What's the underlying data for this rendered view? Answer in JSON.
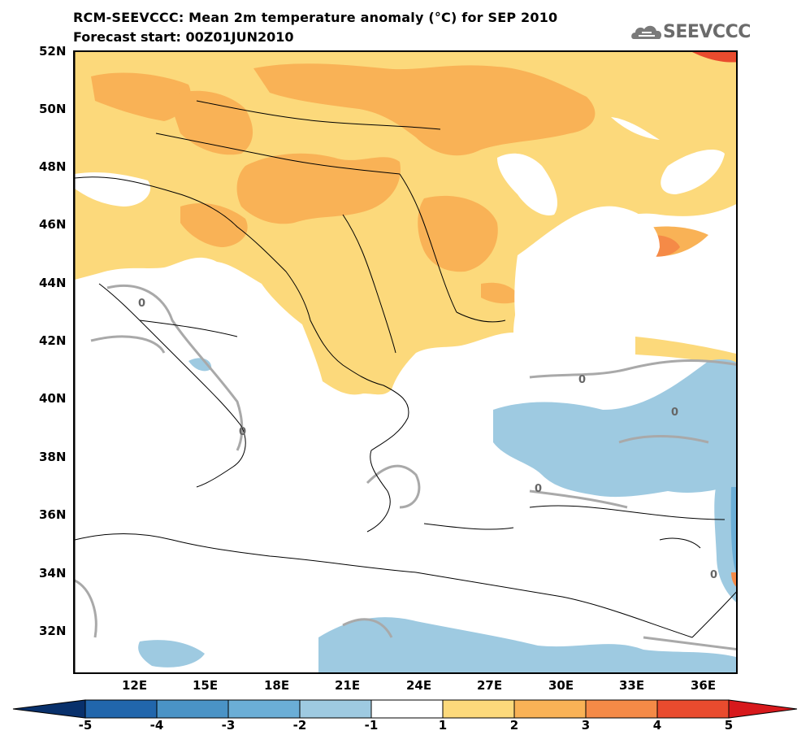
{
  "header": {
    "title": "RCM-SEEVCCC: Mean 2m temperature anomaly (°C) for SEP 2010",
    "subtitle": "Forecast start: 00Z01JUN2010",
    "logo_text": "SEEVCCC"
  },
  "map": {
    "lat_labels": [
      "52N",
      "50N",
      "48N",
      "46N",
      "44N",
      "42N",
      "40N",
      "38N",
      "36N",
      "34N",
      "32N"
    ],
    "lon_labels": [
      "12E",
      "15E",
      "18E",
      "21E",
      "24E",
      "27E",
      "30E",
      "33E",
      "36E"
    ],
    "contour_labels": [
      "0",
      "0",
      "0",
      "0",
      "0",
      "0"
    ],
    "colors": {
      "pos_1_2": "#fcd97b",
      "pos_2_3": "#f9b256",
      "pos_3_4": "#f58a47",
      "pos_4_5": "#e94b2e",
      "neg_1_2": "#9ecae1",
      "neg_2_3": "#6baed6",
      "neg_3_4": "#4a93c6",
      "neg_4_5": "#2166ac",
      "zero_contour": "#a9a9a9"
    }
  },
  "colorbar": {
    "ticks": [
      "-5",
      "-4",
      "-3",
      "-2",
      "-1",
      "1",
      "2",
      "3",
      "4",
      "5"
    ],
    "colors": [
      "#08306b",
      "#2166ac",
      "#4a93c6",
      "#6baed6",
      "#9ecae1",
      "#ffffff",
      "#fcd97b",
      "#f9b256",
      "#f58a47",
      "#e94b2e",
      "#d7191c"
    ]
  }
}
